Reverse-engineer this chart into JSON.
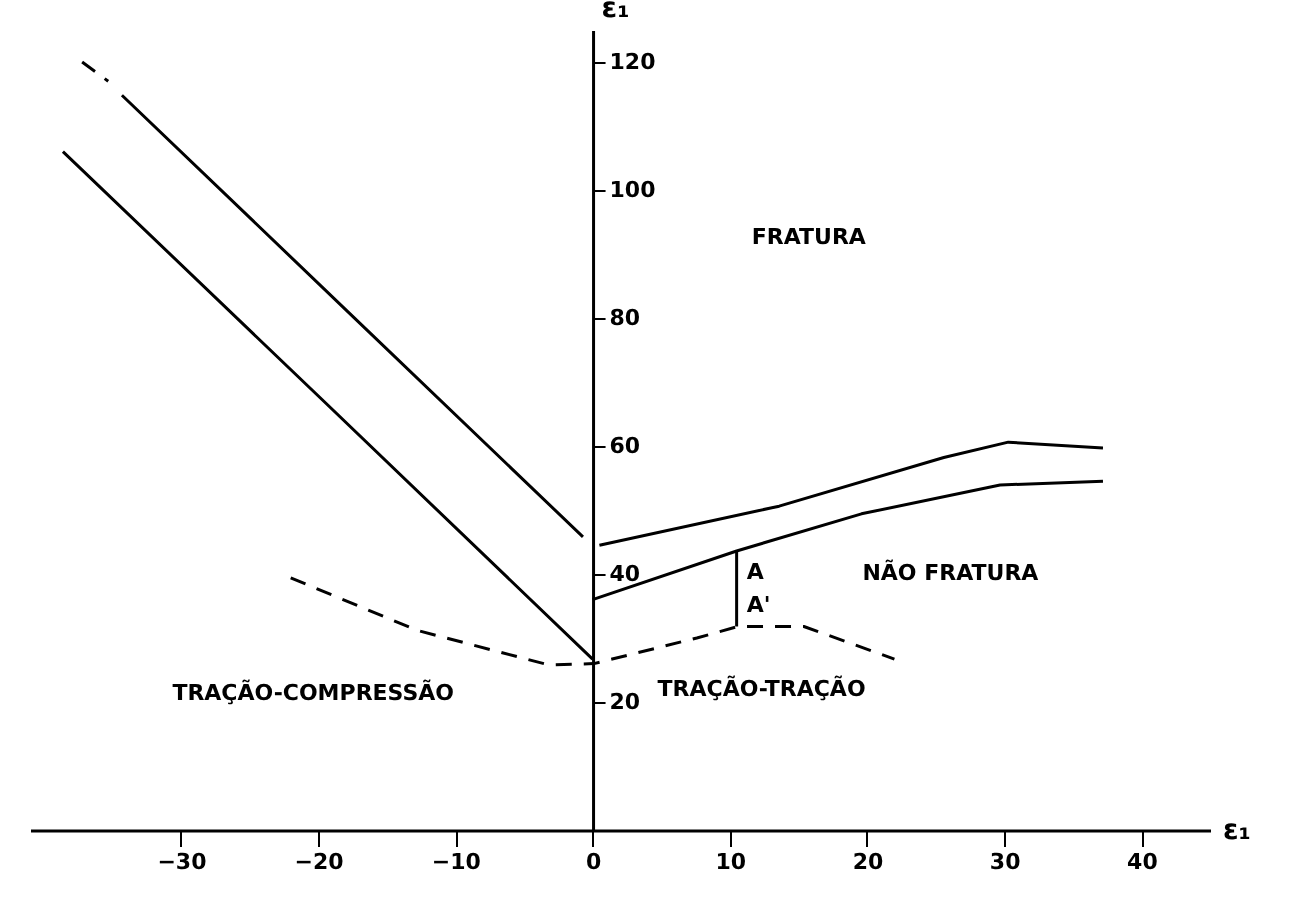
{
  "chart_data": {
    "type": "line",
    "xlabel": "ε₁",
    "ylabel": "ε₁",
    "xlim": [
      -41,
      45
    ],
    "ylim": [
      0,
      125
    ],
    "xticks": [
      -30,
      -20,
      -10,
      0,
      10,
      20,
      30,
      40
    ],
    "yticks": [
      20,
      40,
      60,
      80,
      100,
      120
    ],
    "grid": false,
    "marker": "none",
    "series": [
      {
        "color": "#000000",
        "line_style": "solid",
        "x": [
          -34.3,
          -17.5,
          -0.7
        ],
        "values": [
          114.8,
          80.3,
          45.8
        ]
      },
      {
        "color": "#000000",
        "line_style": "dashed",
        "x": [
          -37.2,
          -35.3
        ],
        "values": [
          120,
          117
        ]
      },
      {
        "color": "#000000",
        "line_style": "solid",
        "x": [
          -38.6,
          -19.3,
          0
        ],
        "values": [
          106,
          66.4,
          26.7
        ]
      },
      {
        "color": "#000000",
        "line_style": "solid",
        "x": [
          0.5,
          13.6,
          25.6,
          30.3,
          37.2
        ],
        "values": [
          44.5,
          50.6,
          58.2,
          60.6,
          59.7
        ]
      },
      {
        "color": "#000000",
        "line_style": "solid",
        "x": [
          0,
          10.5,
          19.6,
          29.7,
          37.2
        ],
        "values": [
          36,
          43.6,
          49.4,
          53.9,
          54.5
        ]
      },
      {
        "color": "#000000",
        "line_style": "dashed",
        "x": [
          -22,
          -12.8,
          -3.2,
          0.1,
          7.6,
          10.6,
          15.4,
          22
        ],
        "values": [
          39.4,
          31.2,
          25.8,
          26,
          30,
          31.8,
          31.8,
          26.7
        ]
      },
      {
        "color": "#000000",
        "line_style": "solid",
        "x": [
          10.5,
          10.5
        ],
        "values": [
          43.6,
          31.8
        ]
      }
    ],
    "annotations": [
      "FRATURA",
      "NÃO FRATURA",
      "TRAÇÃO-COMPRESSÃO",
      "TRAÇÃO-TRAÇÃO",
      {
        "text": "A",
        "x": 10.5,
        "y": 43.6
      },
      {
        "text": "A'",
        "x": 10.5,
        "y": 31.8
      }
    ]
  }
}
